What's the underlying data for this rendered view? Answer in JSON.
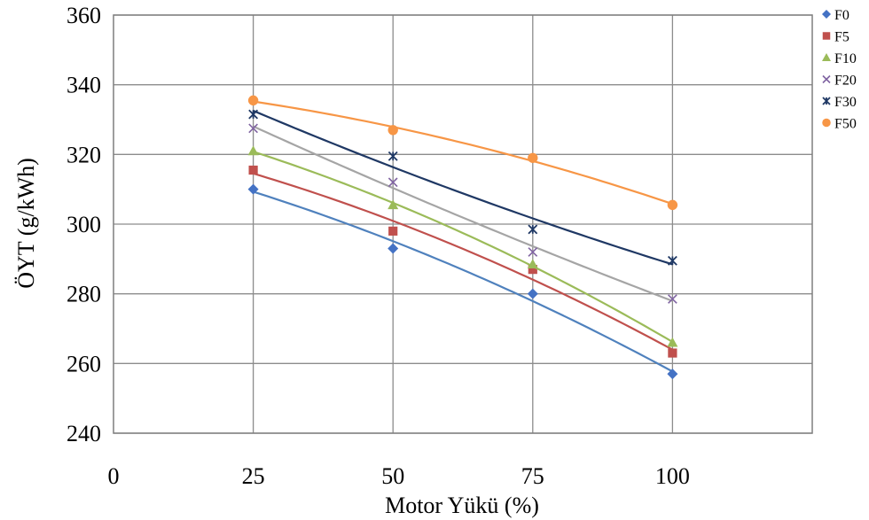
{
  "chart_data": {
    "type": "scatter",
    "title": "",
    "xlabel": "Motor Yükü (%)",
    "ylabel": "ÖYT (g/kWh)",
    "xlim": [
      0,
      125
    ],
    "ylim": [
      240,
      360
    ],
    "xticks": [
      0,
      25,
      50,
      75,
      100
    ],
    "yticks": [
      240,
      260,
      280,
      300,
      320,
      340,
      360
    ],
    "grid": true,
    "legend_position": "right",
    "x": [
      25,
      50,
      75,
      100
    ],
    "series": [
      {
        "name": "F0",
        "marker": "diamond",
        "color": "#4472C4",
        "line_color": "#4F81BD",
        "values": [
          310,
          293,
          280,
          257
        ]
      },
      {
        "name": "F5",
        "marker": "square",
        "color": "#C0504D",
        "line_color": "#C0504D",
        "values": [
          315.5,
          298,
          287,
          263
        ]
      },
      {
        "name": "F10",
        "marker": "triangle",
        "color": "#9BBB59",
        "line_color": "#9BBB59",
        "values": [
          321,
          305.5,
          288.5,
          266
        ]
      },
      {
        "name": "F20",
        "marker": "x",
        "color": "#8064A2",
        "line_color": "#A5A5A5",
        "values": [
          327.5,
          312,
          292,
          278.5
        ]
      },
      {
        "name": "F30",
        "marker": "star",
        "color": "#1F3864",
        "line_color": "#1F3864",
        "values": [
          331.5,
          319.5,
          298.5,
          289.5
        ]
      },
      {
        "name": "F50",
        "marker": "circle",
        "color": "#F79646",
        "line_color": "#F79646",
        "values": [
          335.5,
          327,
          319,
          305.5
        ]
      }
    ]
  }
}
